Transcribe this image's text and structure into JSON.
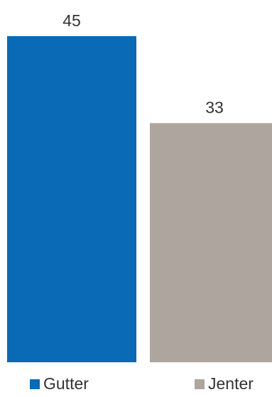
{
  "chart_data": {
    "type": "bar",
    "categories": [
      "Gutter",
      "Jenter"
    ],
    "values": [
      45,
      33
    ],
    "colors": [
      "#0a6ab5",
      "#aea69e"
    ],
    "title": "",
    "xlabel": "",
    "ylabel": "",
    "ylim": [
      0,
      45
    ],
    "grid": false,
    "legend": {
      "position": "bottom",
      "entries": [
        "Gutter",
        "Jenter"
      ]
    }
  }
}
